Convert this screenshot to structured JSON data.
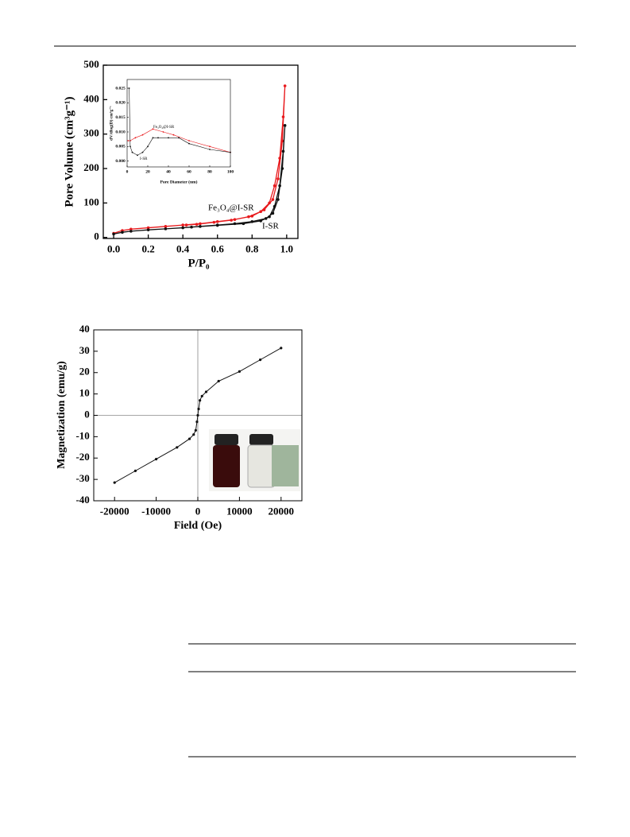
{
  "chart_data": [
    {
      "type": "line",
      "ylabel": "Pore Volume (cm³g⁻¹)",
      "xlabel": "P/P₀",
      "xlim": [
        -0.06,
        1.065
      ],
      "ylim": [
        -3,
        500
      ],
      "xticks": [
        {
          "value": 0,
          "label": "0.0"
        },
        0.2,
        0.4,
        0.6,
        0.8,
        {
          "value": 1,
          "label": "1.0"
        }
      ],
      "yticks": [
        0,
        100,
        200,
        300,
        400,
        500
      ],
      "series": [
        {
          "name": "Fe₃O₄@I-SR",
          "color": "#e8191c",
          "x": [
            0,
            0.05,
            0.1,
            0.2,
            0.3,
            0.4,
            0.5,
            0.6,
            0.7,
            0.8,
            0.87,
            0.92,
            0.95,
            0.975,
            0.99,
            0.98,
            0.96,
            0.93,
            0.9,
            0.85,
            0.78,
            0.68,
            0.58,
            0.48,
            0.42
          ],
          "values": [
            12,
            20,
            24,
            28,
            32,
            36,
            40,
            46,
            52,
            62,
            80,
            110,
            170,
            280,
            440,
            350,
            230,
            150,
            100,
            75,
            60,
            50,
            44,
            38,
            36
          ]
        },
        {
          "name": "I-SR",
          "color": "#111111",
          "x": [
            0,
            0.05,
            0.1,
            0.2,
            0.3,
            0.4,
            0.5,
            0.6,
            0.7,
            0.8,
            0.88,
            0.92,
            0.95,
            0.975,
            0.99,
            0.98,
            0.96,
            0.93,
            0.9,
            0.85,
            0.75,
            0.6,
            0.45
          ],
          "values": [
            10,
            15,
            18,
            22,
            25,
            28,
            32,
            36,
            40,
            46,
            55,
            70,
            110,
            200,
            325,
            250,
            150,
            90,
            60,
            48,
            40,
            35,
            30
          ]
        }
      ]
    },
    {
      "type": "line",
      "ylabel": "dV/dlog(D) cm³g⁻¹",
      "xlabel": "Pore Diameter (nm)",
      "xlim": [
        0,
        100
      ],
      "ylim": [
        -0.002,
        0.028
      ],
      "xticks": [
        0,
        20,
        40,
        60,
        80,
        100
      ],
      "yticks": [
        {
          "value": 0,
          "label": "0.000"
        },
        {
          "value": 0.005,
          "label": "0.005"
        },
        {
          "value": 0.01,
          "label": "0.010"
        },
        {
          "value": 0.015,
          "label": "0.015"
        },
        {
          "value": 0.02,
          "label": "0.020"
        },
        {
          "value": 0.025,
          "label": "0.025"
        }
      ],
      "series": [
        {
          "name": "Fe₃O₄@I-SR",
          "color": "#e8191c",
          "x": [
            1,
            3,
            8,
            15,
            25,
            35,
            45,
            60,
            80,
            100
          ],
          "values": [
            0.007,
            0.007,
            0.008,
            0.009,
            0.011,
            0.01,
            0.009,
            0.007,
            0.005,
            0.003
          ]
        },
        {
          "name": "I-SR",
          "color": "#111111",
          "x": [
            2,
            3,
            5,
            10,
            15,
            20,
            25,
            30,
            40,
            50,
            60,
            80,
            100
          ],
          "values": [
            0.025,
            0.005,
            0.003,
            0.002,
            0.003,
            0.005,
            0.008,
            0.008,
            0.008,
            0.008,
            0.006,
            0.004,
            0.003
          ]
        }
      ]
    },
    {
      "type": "line",
      "ylabel": "Magnetization (emu/g)",
      "xlabel": "Field (Oe)",
      "xlim": [
        -25000,
        25000
      ],
      "ylim": [
        -40,
        40
      ],
      "zero_lines": true,
      "xticks": [
        -20000,
        -10000,
        0,
        10000,
        20000
      ],
      "yticks": [
        -40,
        -30,
        -20,
        -10,
        0,
        10,
        20,
        30,
        40
      ],
      "series": [
        {
          "color": "#111111",
          "x": [
            -20000,
            -15000,
            -10000,
            -5000,
            -2000,
            -1000,
            -500,
            -200,
            0,
            200,
            500,
            1000,
            2000,
            5000,
            10000,
            15000,
            20000
          ],
          "values": [
            -31.5,
            -26,
            -20.5,
            -15,
            -11,
            -9,
            -7,
            -3,
            0,
            3,
            7,
            9,
            11,
            16,
            20.5,
            26,
            31.5
          ]
        }
      ]
    }
  ]
}
